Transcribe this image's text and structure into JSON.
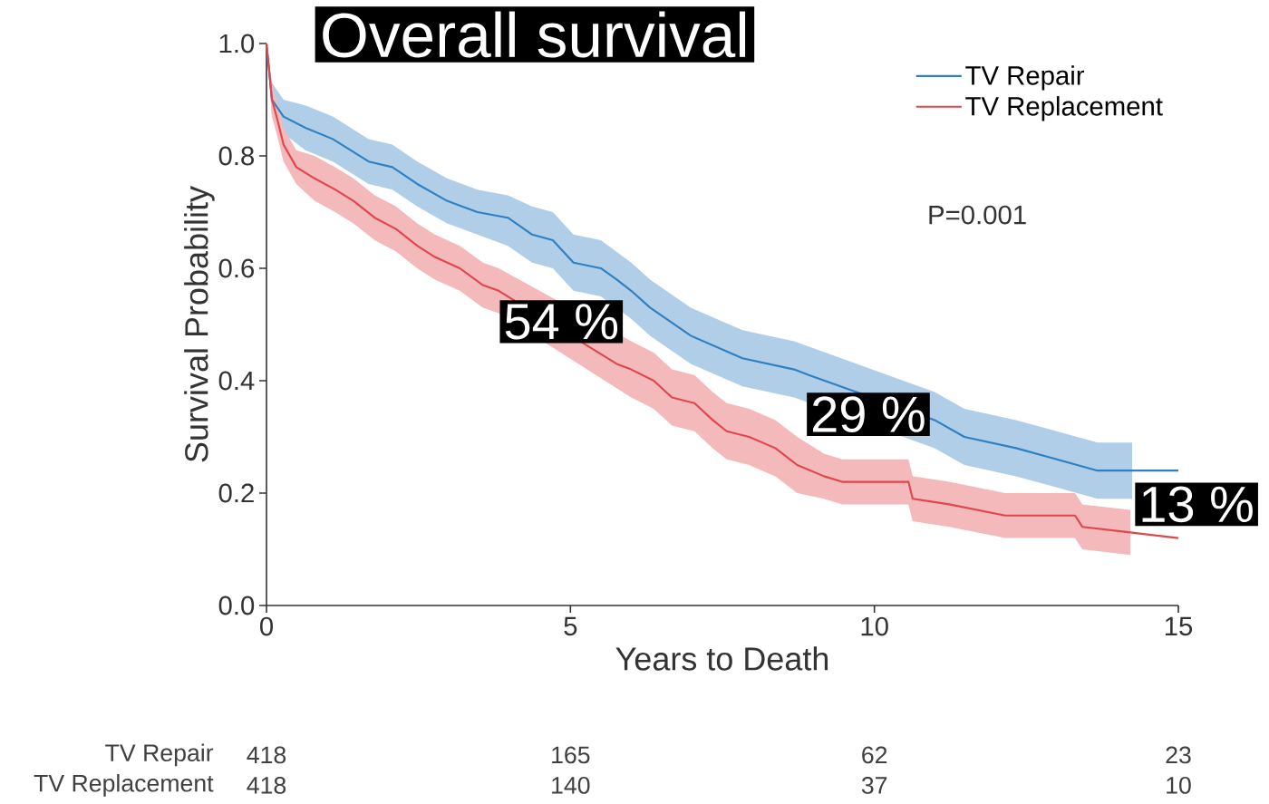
{
  "chart_data": {
    "type": "line",
    "title": "Overall survival",
    "xlabel": "Years to Death",
    "ylabel": "Survival Probability",
    "xlim": [
      0,
      15
    ],
    "ylim": [
      0,
      1
    ],
    "xticks": [
      0,
      5,
      10,
      15
    ],
    "yticks": [
      {
        "value": 0,
        "label": "0.0"
      },
      {
        "value": 0.2,
        "label": "0.2"
      },
      {
        "value": 0.4,
        "label": "0.4"
      },
      {
        "value": 0.6,
        "label": "0.6"
      },
      {
        "value": 0.8,
        "label": "0.8"
      },
      {
        "value": 1,
        "label": "1.0"
      }
    ],
    "legend": "top right",
    "grid": false,
    "marker": "none",
    "line_style": "solid",
    "series": [
      {
        "name": "TV Repair",
        "color": "#2f7fc1",
        "x": [
          0,
          0.09,
          0.28,
          0.64,
          1.09,
          1.68,
          2.07,
          2.48,
          2.97,
          3.47,
          3.97,
          4.37,
          4.71,
          5.05,
          5.5,
          5.76,
          6.0,
          6.31,
          6.98,
          7.83,
          8.68,
          8.92,
          10.99,
          11.48,
          12.33,
          13.0,
          13.67,
          14.24,
          15
        ],
        "values": [
          1.0,
          0.9,
          0.87,
          0.85,
          0.83,
          0.79,
          0.78,
          0.75,
          0.72,
          0.7,
          0.69,
          0.66,
          0.65,
          0.61,
          0.6,
          0.58,
          0.56,
          0.53,
          0.48,
          0.44,
          0.42,
          0.41,
          0.33,
          0.3,
          0.28,
          0.26,
          0.24,
          0.24,
          0.24
        ],
        "lower": [
          1.0,
          0.87,
          0.84,
          0.81,
          0.79,
          0.75,
          0.74,
          0.71,
          0.68,
          0.66,
          0.64,
          0.61,
          0.6,
          0.56,
          0.55,
          null,
          0.51,
          0.48,
          0.43,
          0.39,
          0.37,
          null,
          0.28,
          0.25,
          0.23,
          0.21,
          0.19,
          0.19,
          null
        ],
        "upper": [
          1.0,
          0.93,
          0.9,
          0.89,
          0.87,
          0.83,
          0.82,
          0.79,
          0.76,
          0.74,
          0.73,
          0.71,
          0.7,
          0.66,
          0.65,
          null,
          0.61,
          0.58,
          0.53,
          0.49,
          0.47,
          null,
          0.38,
          0.35,
          0.33,
          0.31,
          0.29,
          0.29,
          null
        ]
      },
      {
        "name": "TV Replacement",
        "color": "#e0464c",
        "x": [
          0,
          0.09,
          0.19,
          0.28,
          0.49,
          0.79,
          1.13,
          1.43,
          1.78,
          2.13,
          2.48,
          2.77,
          3.18,
          3.56,
          3.82,
          5.76,
          6.0,
          6.37,
          6.67,
          7.04,
          7.34,
          7.57,
          7.94,
          8.37,
          8.73,
          9.17,
          9.47,
          10.56,
          10.63,
          11.23,
          12.15,
          13.3,
          13.42,
          14.21,
          15
        ],
        "values": [
          1.0,
          0.9,
          0.86,
          0.82,
          0.78,
          0.76,
          0.74,
          0.72,
          0.69,
          0.67,
          0.64,
          0.62,
          0.6,
          0.57,
          0.56,
          0.43,
          0.42,
          0.4,
          0.37,
          0.36,
          0.33,
          0.31,
          0.3,
          0.28,
          0.25,
          0.23,
          0.22,
          0.22,
          0.19,
          0.18,
          0.16,
          0.16,
          0.14,
          0.13,
          0.12
        ],
        "lower": [
          1.0,
          0.87,
          0.83,
          0.79,
          0.75,
          0.72,
          0.7,
          0.68,
          0.65,
          0.63,
          0.6,
          0.58,
          0.56,
          0.53,
          0.52,
          null,
          0.37,
          0.35,
          0.32,
          0.31,
          0.28,
          0.26,
          0.25,
          0.23,
          0.2,
          0.19,
          0.18,
          0.18,
          0.15,
          0.14,
          0.12,
          0.12,
          0.1,
          0.09,
          null
        ],
        "upper": [
          1.0,
          0.93,
          0.89,
          0.85,
          0.81,
          0.8,
          0.78,
          0.76,
          0.73,
          0.71,
          0.68,
          0.66,
          0.64,
          0.61,
          0.6,
          null,
          0.47,
          0.45,
          0.42,
          0.41,
          0.38,
          0.36,
          0.35,
          0.33,
          0.3,
          0.27,
          0.26,
          0.26,
          0.23,
          0.22,
          0.2,
          0.2,
          0.18,
          0.17,
          null
        ]
      }
    ],
    "annotations": [
      "P=0.001",
      "54 %",
      "29 %",
      "13 %",
      "418",
      "165",
      "62",
      "23",
      "418",
      "140",
      "37",
      "10"
    ]
  }
}
